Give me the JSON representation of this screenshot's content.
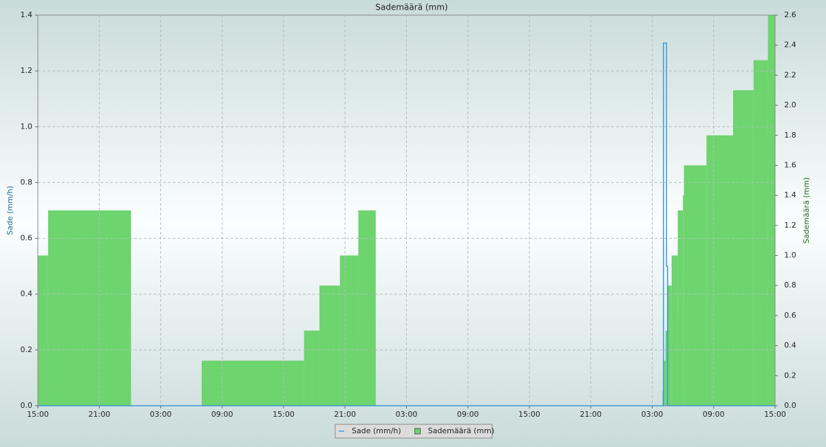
{
  "chart_data": {
    "type": "line",
    "title": "Sademäärä (mm)",
    "ylabel": "Sade (mm/h)",
    "y2label": "Sademäärä (mm)",
    "xlim": [
      0,
      72
    ],
    "xticks": [
      {
        "value": 0,
        "label": "15:00"
      },
      {
        "value": 6,
        "label": "21:00"
      },
      {
        "value": 12,
        "label": "03:00"
      },
      {
        "value": 18,
        "label": "09:00"
      },
      {
        "value": 24,
        "label": "15:00"
      },
      {
        "value": 30,
        "label": "21:00"
      },
      {
        "value": 36,
        "label": "03:00"
      },
      {
        "value": 42,
        "label": "09:00"
      },
      {
        "value": 48,
        "label": "15:00"
      },
      {
        "value": 54,
        "label": "21:00"
      },
      {
        "value": 60,
        "label": "03:00"
      },
      {
        "value": 66,
        "label": "09:00"
      },
      {
        "value": 72,
        "label": "15:00"
      }
    ],
    "ylim": [
      0,
      1.4
    ],
    "yticks": [
      {
        "value": 0,
        "label": "0.0"
      },
      0.2,
      0.4,
      0.6,
      0.8,
      {
        "value": 1,
        "label": "1.0"
      },
      1.2,
      1.4
    ],
    "y2lim": [
      0,
      2.6
    ],
    "y2ticks": [
      {
        "value": 0,
        "label": "0.0"
      },
      0.2,
      0.4,
      0.6,
      0.8,
      {
        "value": 1,
        "label": "1.0"
      },
      1.2,
      1.4,
      1.6,
      1.8,
      {
        "value": 2,
        "label": "2.0"
      },
      2.2,
      2.4,
      2.6
    ],
    "grid": true,
    "legend": "bottom",
    "series": [
      {
        "name": "Sade (mm/h)",
        "color": "#3a9ad9",
        "type": "line",
        "x": [
          0,
          61.1,
          61.1,
          61.4,
          61.4,
          61.5,
          61.5,
          72
        ],
        "values": [
          0,
          0,
          1.3,
          1.3,
          0.5,
          0.5,
          0,
          0
        ]
      },
      {
        "name": "Sademäärä (mm)",
        "color": "#6dd46e",
        "type": "histogram",
        "axis": "y2",
        "bins": [
          0,
          1,
          9.1,
          16,
          26,
          27.5,
          29.5,
          31.3,
          33,
          61,
          61.1,
          61.3,
          61.5,
          61.9,
          62.5,
          63,
          63.1,
          65.3,
          67.9,
          69.9,
          71.3,
          72
        ],
        "values": [
          1.0,
          1.3,
          0,
          0.3,
          0.5,
          0.8,
          1.0,
          1.3,
          0,
          0.1,
          0.3,
          0.5,
          0.8,
          1.0,
          1.3,
          1.4,
          1.6,
          1.8,
          2.1,
          2.3,
          2.6
        ]
      }
    ]
  }
}
